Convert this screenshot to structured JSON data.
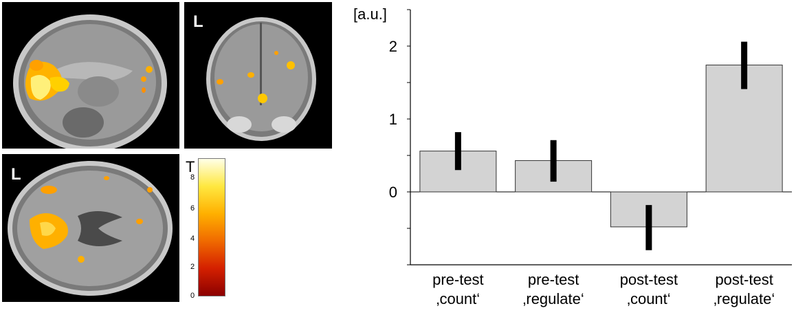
{
  "brain_figure": {
    "coronal_label": "L",
    "axial_label": "L",
    "colorbar": {
      "title": "T",
      "ticks": [
        "8",
        "6",
        "4",
        "2",
        "0"
      ],
      "colors": [
        "#8b0000",
        "#d42000",
        "#f06a00",
        "#ffb000",
        "#ffe840",
        "#ffffe8"
      ]
    }
  },
  "chart_data": {
    "type": "bar",
    "ylabel": "[a.u.]",
    "categories": [
      [
        "pre-test",
        "‚count‘"
      ],
      [
        "pre-test",
        "‚regulate‘"
      ],
      [
        "post-test",
        "‚count‘"
      ],
      [
        "post-test",
        "‚regulate‘"
      ]
    ],
    "values": [
      0.56,
      0.43,
      -0.48,
      1.74
    ],
    "error_low": [
      0.3,
      0.14,
      -0.8,
      1.41
    ],
    "error_high": [
      0.82,
      0.71,
      -0.18,
      2.06
    ],
    "ylim": [
      -1.0,
      2.5
    ],
    "yticks": [
      0,
      1,
      2
    ],
    "ytick_labels": [
      "0",
      "1",
      "2"
    ],
    "bar_color": "#d3d3d3",
    "error_color": "#000000",
    "grid": false
  }
}
